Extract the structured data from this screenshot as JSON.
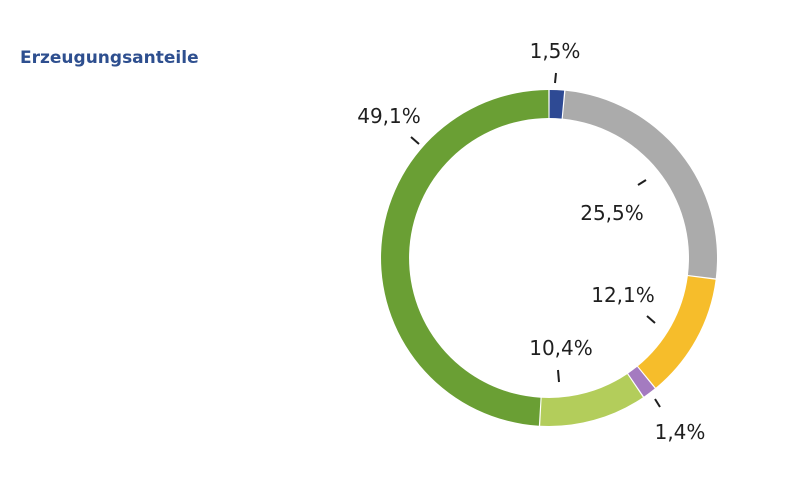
{
  "chart_data": {
    "type": "pie",
    "variant": "donut",
    "title": "Erzeugungsanteile",
    "slices": [
      {
        "value": 1.5,
        "label": "1,5%",
        "color": "#2e4a94"
      },
      {
        "value": 25.5,
        "label": "25,5%",
        "color": "#ababab"
      },
      {
        "value": 12.1,
        "label": "12,1%",
        "color": "#f6bd2b"
      },
      {
        "value": 1.4,
        "label": "1,4%",
        "color": "#a47bc0"
      },
      {
        "value": 10.4,
        "label": "10,4%",
        "color": "#b3cd5b"
      },
      {
        "value": 49.1,
        "label": "49,1%",
        "color": "#6a9f34"
      }
    ],
    "legend": "none"
  }
}
